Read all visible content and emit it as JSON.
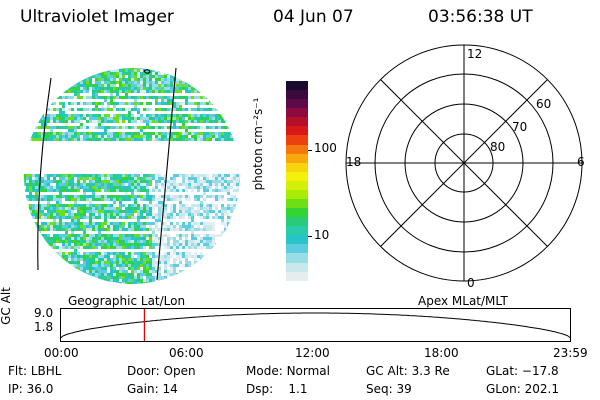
{
  "header": {
    "title": "Ultraviolet Imager",
    "date": "04 Jun 07",
    "time": "03:56:38 UT"
  },
  "colorbar": {
    "unit_label": "photon cm⁻²s⁻¹",
    "ticks": [
      "100",
      "10"
    ],
    "colors": [
      "#1a0a2e",
      "#3a0a3c",
      "#5e0a4a",
      "#8c0a3e",
      "#b4102a",
      "#d81818",
      "#ec4010",
      "#f4780c",
      "#f8a80c",
      "#f8d40c",
      "#f4f00c",
      "#d4f008",
      "#a8ec08",
      "#6ce014",
      "#34d434",
      "#28cc78",
      "#28cca8",
      "#28c4c8",
      "#5ccce0",
      "#98dce8",
      "#c8e8ec",
      "#e4eef0"
    ]
  },
  "polar": {
    "mlt_labels": {
      "top": "12",
      "left": "18",
      "right": "6",
      "bottom": "0"
    },
    "lat_labels": [
      "60",
      "70",
      "80"
    ]
  },
  "timeline": {
    "left_title": "Geographic Lat/Lon",
    "right_title": "Apex MLat/MLT",
    "axis_label": "GC Alt",
    "y_ticks": [
      "9.0",
      "1.8"
    ],
    "x_ticks": [
      "00:00",
      "06:00",
      "12:00",
      "18:00",
      "23:59"
    ],
    "marker_time": "03:56:38"
  },
  "footer": {
    "row1": [
      {
        "label": "Flt:",
        "value": "LBHL"
      },
      {
        "label": "Door:",
        "value": "Open"
      },
      {
        "label": "Mode:",
        "value": "Normal"
      },
      {
        "label": "GC Alt:",
        "value": "3.3 Re"
      },
      {
        "label": "GLat:",
        "value": "−17.8"
      }
    ],
    "row2": [
      {
        "label": "IP:",
        "value": "36.0"
      },
      {
        "label": "Gain:",
        "value": "14"
      },
      {
        "label": "Dsp:",
        "value": "1.1"
      },
      {
        "label": "Seq:",
        "value": "39"
      },
      {
        "label": "GLon:",
        "value": "202.1"
      }
    ]
  }
}
